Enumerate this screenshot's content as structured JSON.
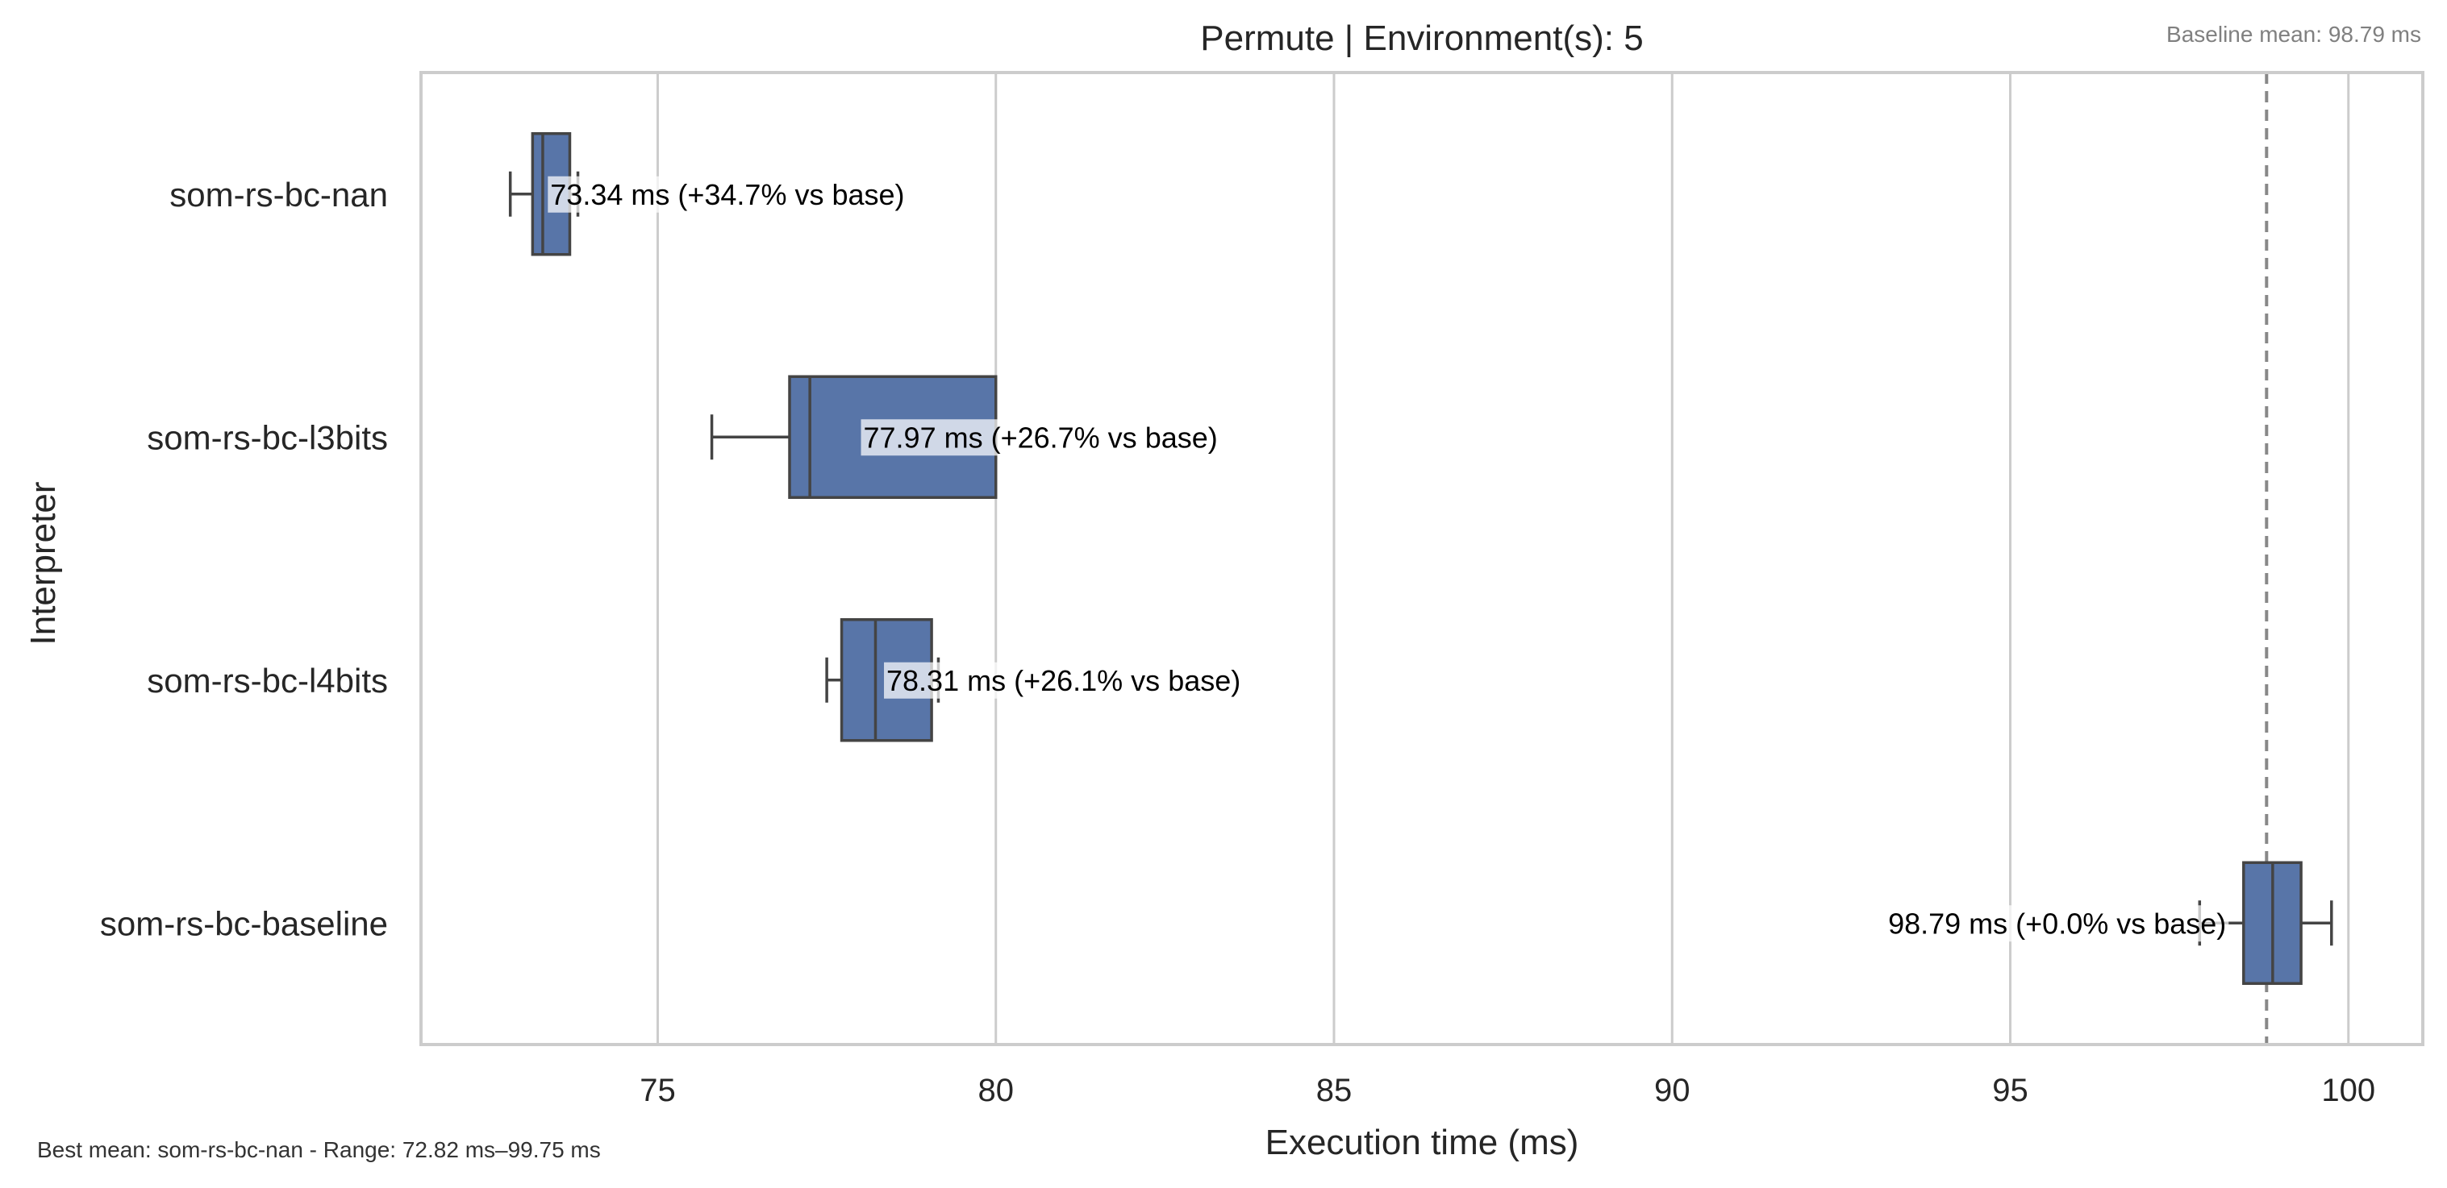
{
  "chart_data": {
    "type": "boxplot",
    "orientation": "horizontal",
    "title": "Permute | Environment(s): 5",
    "xlabel": "Execution time (ms)",
    "ylabel": "Interpreter",
    "xlim": [
      71.5,
      101.1
    ],
    "xticks": [
      75,
      80,
      85,
      90,
      95,
      100
    ],
    "grid": "vertical",
    "colors": {
      "box": "#5875a8",
      "edge": "#444444",
      "grid": "#cccccc",
      "baseline_line": "#888888"
    },
    "baseline_mean": 98.79,
    "baseline_label": "Baseline mean: 98.79 ms",
    "footer": "Best mean: som-rs-bc-nan - Range: 72.82 ms–99.75 ms",
    "categories": [
      "som-rs-bc-nan",
      "som-rs-bc-l3bits",
      "som-rs-bc-l4bits",
      "som-rs-bc-baseline"
    ],
    "boxes": [
      {
        "name": "som-rs-bc-nan",
        "whisker_low": 72.82,
        "q1": 73.15,
        "median": 73.3,
        "q3": 73.7,
        "whisker_high": 73.82,
        "mean": 73.34,
        "label": "73.34 ms  (+34.7% vs base)"
      },
      {
        "name": "som-rs-bc-l3bits",
        "whisker_low": 75.8,
        "q1": 76.95,
        "median": 77.25,
        "q3": 80.0,
        "whisker_high": 80.0,
        "mean": 77.97,
        "label": "77.97 ms  (+26.7% vs base)"
      },
      {
        "name": "som-rs-bc-l4bits",
        "whisker_low": 77.5,
        "q1": 77.72,
        "median": 78.22,
        "q3": 79.05,
        "whisker_high": 79.15,
        "mean": 78.31,
        "label": "78.31 ms  (+26.1% vs base)"
      },
      {
        "name": "som-rs-bc-baseline",
        "whisker_low": 97.8,
        "q1": 98.45,
        "median": 98.88,
        "q3": 99.3,
        "whisker_high": 99.75,
        "mean": 98.79,
        "label": "98.79 ms  (+0.0% vs base)"
      }
    ]
  }
}
